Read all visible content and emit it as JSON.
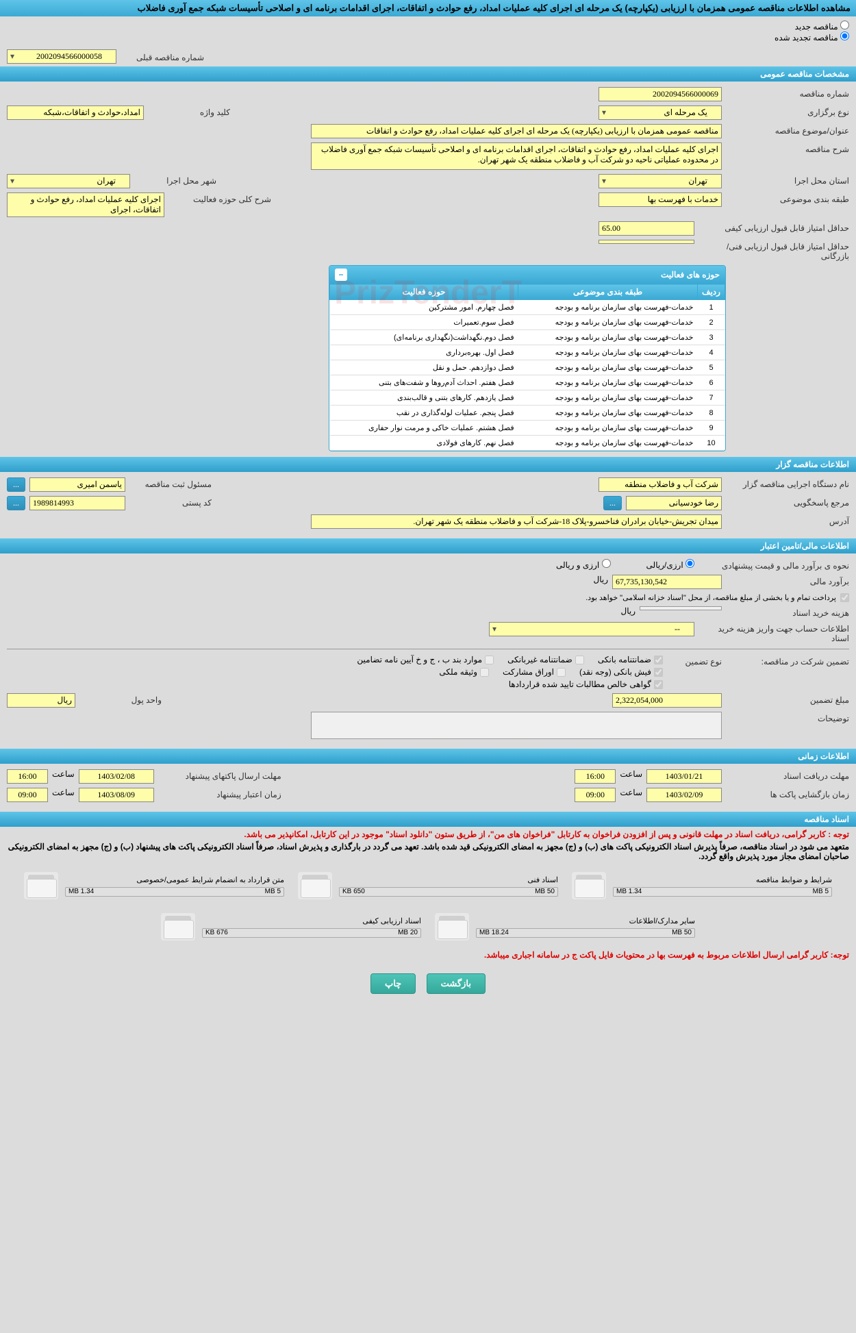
{
  "title": "مشاهده اطلاعات مناقصه عمومی همزمان با ارزیابی (یکپارچه) یک مرحله ای اجرای کلیه عملیات امداد، رفع حوادث و اتفاقات، اجرای اقدامات برنامه ای و اصلاحی تأسیسات شبکه جمع آوری فاضلاب",
  "radio": {
    "new": "مناقصه جدید",
    "renew": "مناقصه تجدید شده"
  },
  "prev_num": {
    "label": "شماره مناقصه قبلی",
    "value": "2002094566000058"
  },
  "sec_general": "مشخصات مناقصه عمومی",
  "general": {
    "num_label": "شماره مناقصه",
    "num": "2002094566000069",
    "type_label": "نوع برگزاری",
    "type": "یک مرحله ای",
    "kw_label": "کلید واژه",
    "kw": "امداد،حوادث و اتفاقات،شبکه",
    "subject_label": "عنوان/موضوع مناقصه",
    "subject": "مناقصه عمومی همزمان با ارزیابی (یکپارچه) یک مرحله ای اجرای کلیه عملیات امداد، رفع حوادث و اتفاقات",
    "desc_label": "شرح مناقصه",
    "desc": "اجرای کلیه عملیات امداد، رفع حوادث و اتفاقات، اجرای اقدامات برنامه ای و اصلاحی تأسیسات شبکه جمع آوری فاضلاب در محدوده عملیاتی ناحیه دو شرکت آب و فاضلاب منطقه یک شهر تهران.",
    "province_label": "استان محل اجرا",
    "province": "تهران",
    "city_label": "شهر محل اجرا",
    "city": "تهران",
    "class_label": "طبقه بندی موضوعی",
    "class": "خدمات با فهرست بها",
    "scope_label": "شرح کلی حوزه فعالیت",
    "scope": "اجرای کلیه عملیات امداد، رفع حوادث و اتفاقات، اجرای",
    "min_qual_label": "حداقل امتیاز قابل قبول ارزیابی کیفی",
    "min_qual": "65.00",
    "min_tech_label": "حداقل امتیاز قابل قبول ارزیابی فنی/بازرگانی",
    "min_tech": ""
  },
  "activity_table": {
    "title": "حوزه های فعالیت",
    "cols": [
      "ردیف",
      "طبقه بندی موضوعی",
      "حوزه فعالیت"
    ],
    "rows": [
      [
        "1",
        "خدمات-فهرست بهای سازمان برنامه و بودجه",
        "فصل چهارم. امور مشترکین"
      ],
      [
        "2",
        "خدمات-فهرست بهای سازمان برنامه و بودجه",
        "فصل سوم.تعمیرات"
      ],
      [
        "3",
        "خدمات-فهرست بهای سازمان برنامه و بودجه",
        "فصل دوم.نگهداشت(نگهداری برنامه‌ای)"
      ],
      [
        "4",
        "خدمات-فهرست بهای سازمان برنامه و بودجه",
        "فصل اول. بهره‌برداری"
      ],
      [
        "5",
        "خدمات-فهرست بهای سازمان برنامه و بودجه",
        "فصل دوازدهم. حمل و نقل"
      ],
      [
        "6",
        "خدمات-فهرست بهای سازمان برنامه و بودجه",
        "فصل هفتم. احداث آدم‌روها و شفت‌های بتنی"
      ],
      [
        "7",
        "خدمات-فهرست بهای سازمان برنامه و بودجه",
        "فصل یازدهم. کارهای بتنی و قالب‌بندی"
      ],
      [
        "8",
        "خدمات-فهرست بهای سازمان برنامه و بودجه",
        "فصل پنجم. عملیات لوله‌گذاری در نقب"
      ],
      [
        "9",
        "خدمات-فهرست بهای سازمان برنامه و بودجه",
        "فصل هشتم. عملیات خاکی و مرمت نوار حفاری"
      ],
      [
        "10",
        "خدمات-فهرست بهای سازمان برنامه و بودجه",
        "فصل نهم. کارهای فولادی"
      ]
    ]
  },
  "sec_org": "اطلاعات مناقصه گزار",
  "org": {
    "dev_label": "نام دستگاه اجرایی مناقصه گزار",
    "dev": "شرکت آب و فاضلاب منطقه",
    "reg_label": "مسئول ثبت مناقصه",
    "reg": "یاسمن امیری",
    "resp_label": "مرجع پاسخگویی",
    "resp": "رضا خودسیانی",
    "post_label": "کد پستی",
    "post": "1989814993",
    "addr_label": "آدرس",
    "addr": "میدان تجریش-خیابان برادران فناخسرو-پلاک 18-شرکت آب و فاضلاب منطقه یک شهر تهران."
  },
  "sec_fin": "اطلاعات مالی/تامین اعتبار",
  "fin": {
    "price_method_label": "نحوه ی برآورد مالی و قیمت پیشنهادی",
    "rial_opt": "ارزی/ریالی",
    "currency_opt": "ارزی و ریالی",
    "est_label": "برآورد مالی",
    "est": "67,735,130,542",
    "unit": "ریال",
    "pay_note": "پرداخت تمام و یا بخشی از مبلغ مناقصه، از محل \"اسناد خزانه اسلامی\" خواهد بود.",
    "doc_cost_label": "هزینه خرید اسناد",
    "doc_cost_unit": "ریال",
    "acc_label": "اطلاعات حساب جهت واریز هزینه خرید اسناد",
    "acc": "--",
    "guarantee_label": "تضمین شرکت در مناقصه:",
    "guarantee_type_label": "نوع تضمین",
    "g1": "ضمانتنامه بانکی",
    "g2": "ضمانتنامه غیربانکی",
    "g3": "موارد بند ب ، ج و خ آیین نامه تضامین",
    "g4": "فیش بانکی (وجه نقد)",
    "g5": "اوراق مشارکت",
    "g6": "وثیقه ملکی",
    "g7": "گواهی خالص مطالبات تایید شده قراردادها",
    "guarantee_amt_label": "مبلغ تضمین",
    "guarantee_amt": "2,322,054,000",
    "money_unit_label": "واحد پول",
    "money_unit": "ریال",
    "notes_label": "توضیحات"
  },
  "sec_time": "اطلاعات زمانی",
  "time": {
    "doc_deadline_label": "مهلت دریافت اسناد",
    "doc_deadline": "1403/01/21",
    "t1_label": "ساعت",
    "t1": "16:00",
    "bid_deadline_label": "مهلت ارسال پاکتهای پیشنهاد",
    "bid_deadline": "1403/02/08",
    "t2_label": "ساعت",
    "t2": "16:00",
    "open_label": "زمان بازگشایی پاکت ها",
    "open": "1403/02/09",
    "t3_label": "ساعت",
    "t3": "09:00",
    "validity_label": "زمان اعتبار پیشنهاد",
    "validity": "1403/08/09",
    "t4_label": "ساعت",
    "t4": "09:00"
  },
  "sec_docs": "اسناد مناقصه",
  "docs_note1": "توجه : کاربر گرامی، دریافت اسناد در مهلت قانونی و پس از افزودن فراخوان به کارتابل \"فراخوان های من\"، از طریق ستون \"دانلود اسناد\" موجود در این کارتابل، امکانپذیر می باشد.",
  "docs_note2": "متعهد می شود در اسناد مناقصه، صرفاً پذیرش اسناد الکترونیکی پاکت های (ب) و (ج) مجهز به امضای الکترونیکی قید شده باشد. تعهد می گردد در بارگذاری و پذیرش اسناد، صرفاً اسناد الکترونیکی پاکت های پیشنهاد (ب) و (ج) مجهز به امضای الکترونیکی صاحبان امضای مجاز مورد پذیرش واقع گردد.",
  "docs": [
    {
      "label": "شرایط و ضوابط مناقصه",
      "size": "1.34 MB",
      "cap": "5 MB"
    },
    {
      "label": "اسناد فنی",
      "size": "650 KB",
      "cap": "50 MB"
    },
    {
      "label": "متن قرارداد به انضمام شرایط عمومی/خصوصی",
      "size": "1.34 MB",
      "cap": "5 MB"
    },
    {
      "label": "سایر مدارک/اطلاعات",
      "size": "18.24 MB",
      "cap": "50 MB"
    },
    {
      "label": "اسناد ارزیابی کیفی",
      "size": "676 KB",
      "cap": "20 MB"
    }
  ],
  "docs_note3": "توجه: کاربر گرامی ارسال اطلاعات مربوط به فهرست بها در محتویات فایل پاکت ج در سامانه اجباری میباشد.",
  "buttons": {
    "back": "بازگشت",
    "print": "چاپ"
  },
  "ellipsis": "..."
}
